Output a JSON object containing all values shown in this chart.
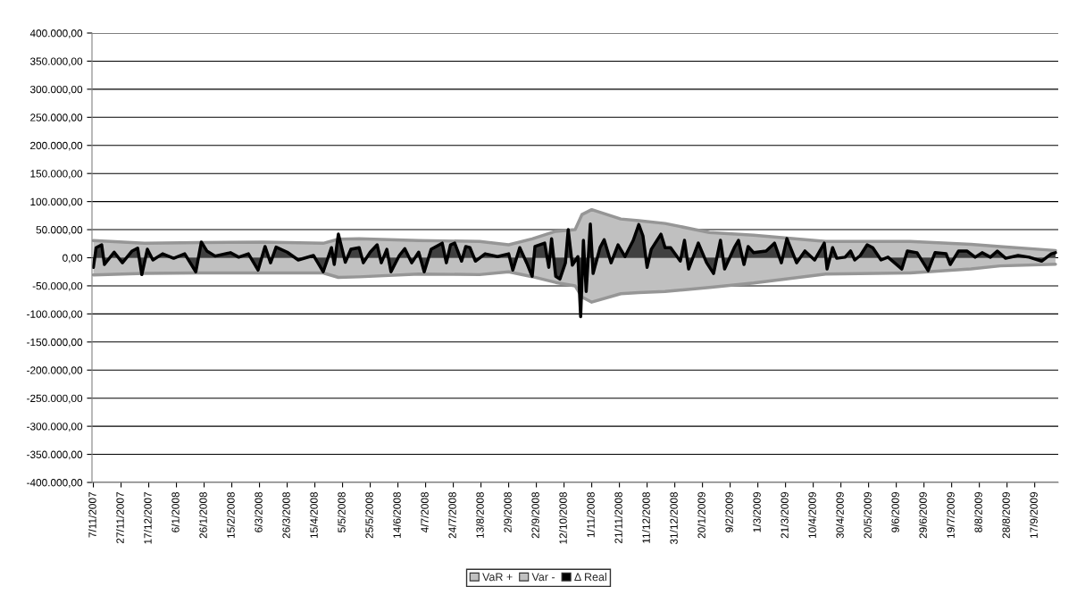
{
  "chart_data": {
    "type": "area",
    "series": [
      {
        "name": "VaR +",
        "color": "#c0c0c0",
        "x": [
          "2007-11-07",
          "2007-12-14",
          "2008-01-23",
          "2008-03-09",
          "2008-04-21",
          "2008-05-02",
          "2008-05-17",
          "2008-06-29",
          "2008-08-12",
          "2008-09-02",
          "2008-09-19",
          "2008-10-06",
          "2008-10-20",
          "2008-10-25",
          "2008-11-01",
          "2008-11-22",
          "2008-12-05",
          "2008-12-24",
          "2009-01-25",
          "2009-02-26",
          "2009-04-19",
          "2009-06-19",
          "2009-08-02",
          "2009-08-23",
          "2009-10-02"
        ],
        "values": [
          30500,
          25700,
          27000,
          28000,
          25700,
          33000,
          33700,
          30600,
          29000,
          23000,
          33700,
          47000,
          50000,
          77000,
          85700,
          69000,
          66000,
          61000,
          45000,
          40000,
          29000,
          29000,
          24000,
          20000,
          12900
        ]
      },
      {
        "name": "Var -",
        "color": "#c0c0c0",
        "x": [
          "2007-11-07",
          "2007-12-14",
          "2008-01-23",
          "2008-03-09",
          "2008-04-21",
          "2008-05-02",
          "2008-05-17",
          "2008-06-29",
          "2008-08-12",
          "2008-09-02",
          "2008-09-19",
          "2008-10-06",
          "2008-10-20",
          "2008-10-25",
          "2008-11-01",
          "2008-11-22",
          "2008-12-05",
          "2008-12-24",
          "2009-01-25",
          "2009-02-26",
          "2009-04-19",
          "2009-06-19",
          "2009-08-02",
          "2009-08-23",
          "2009-10-02"
        ],
        "values": [
          -30500,
          -28000,
          -27000,
          -27000,
          -27000,
          -35000,
          -34000,
          -29000,
          -30000,
          -25000,
          -33700,
          -44000,
          -50000,
          -70000,
          -79000,
          -64000,
          -62000,
          -60000,
          -53000,
          -45000,
          -29000,
          -27000,
          -20000,
          -14500,
          -11500
        ]
      },
      {
        "name": "Δ Real",
        "color": "#000000",
        "x": [
          "2007-11-07",
          "2007-11-09",
          "2007-11-13",
          "2007-11-15",
          "2007-11-22",
          "2007-11-28",
          "2007-12-05",
          "2007-12-09",
          "2007-12-12",
          "2007-12-16",
          "2007-12-20",
          "2007-12-27",
          "2008-01-04",
          "2008-01-12",
          "2008-01-20",
          "2008-01-24",
          "2008-01-28",
          "2008-02-03",
          "2008-02-14",
          "2008-02-20",
          "2008-02-27",
          "2008-03-05",
          "2008-03-10",
          "2008-03-14",
          "2008-03-18",
          "2008-03-26",
          "2008-04-03",
          "2008-04-14",
          "2008-04-21",
          "2008-04-27",
          "2008-04-29",
          "2008-05-02",
          "2008-05-07",
          "2008-05-11",
          "2008-05-17",
          "2008-05-20",
          "2008-05-25",
          "2008-05-30",
          "2008-06-02",
          "2008-06-06",
          "2008-06-09",
          "2008-06-15",
          "2008-06-19",
          "2008-06-24",
          "2008-06-29",
          "2008-07-03",
          "2008-07-08",
          "2008-07-16",
          "2008-07-19",
          "2008-07-22",
          "2008-07-25",
          "2008-07-30",
          "2008-08-02",
          "2008-08-05",
          "2008-08-09",
          "2008-08-16",
          "2008-08-25",
          "2008-09-02",
          "2008-09-05",
          "2008-09-10",
          "2008-09-15",
          "2008-09-19",
          "2008-09-21",
          "2008-09-28",
          "2008-10-01",
          "2008-10-03",
          "2008-10-06",
          "2008-10-09",
          "2008-10-13",
          "2008-10-15",
          "2008-10-18",
          "2008-10-22",
          "2008-10-24",
          "2008-10-26",
          "2008-10-28",
          "2008-10-31",
          "2008-11-02",
          "2008-11-07",
          "2008-11-10",
          "2008-11-15",
          "2008-11-20",
          "2008-11-25",
          "2008-12-01",
          "2008-12-05",
          "2008-12-08",
          "2008-12-11",
          "2008-12-14",
          "2008-12-21",
          "2008-12-24",
          "2008-12-28",
          "2009-01-04",
          "2009-01-07",
          "2009-01-10",
          "2009-01-17",
          "2009-01-23",
          "2009-01-28",
          "2009-02-02",
          "2009-02-05",
          "2009-02-12",
          "2009-02-15",
          "2009-02-19",
          "2009-02-22",
          "2009-02-26",
          "2009-03-07",
          "2009-03-13",
          "2009-03-18",
          "2009-03-22",
          "2009-03-29",
          "2009-04-04",
          "2009-04-11",
          "2009-04-18",
          "2009-04-20",
          "2009-04-24",
          "2009-04-27",
          "2009-05-03",
          "2009-05-07",
          "2009-05-10",
          "2009-05-14",
          "2009-05-19",
          "2009-05-23",
          "2009-05-29",
          "2009-06-03",
          "2009-06-13",
          "2009-06-17",
          "2009-06-24",
          "2009-07-02",
          "2009-07-07",
          "2009-07-15",
          "2009-07-18",
          "2009-07-24",
          "2009-07-30",
          "2009-08-05",
          "2009-08-10",
          "2009-08-16",
          "2009-08-21",
          "2009-08-27",
          "2009-09-05",
          "2009-09-13",
          "2009-09-22",
          "2009-09-29",
          "2009-10-02"
        ],
        "values": [
          -17000,
          18000,
          23000,
          -12000,
          10000,
          -9000,
          12000,
          17000,
          -30000,
          15000,
          -4000,
          7000,
          -1000,
          7000,
          -25000,
          28000,
          12000,
          3000,
          9000,
          1000,
          7000,
          -22000,
          20000,
          -9000,
          19000,
          10000,
          -4000,
          4000,
          -25000,
          18000,
          -12000,
          42000,
          -8000,
          15000,
          18000,
          -9000,
          10000,
          23000,
          -9000,
          15000,
          -25000,
          4000,
          16000,
          -9000,
          10000,
          -25000,
          15000,
          26000,
          -9000,
          23000,
          26000,
          -6000,
          20000,
          18000,
          -6000,
          7000,
          2000,
          7000,
          -22000,
          18000,
          -9000,
          -33000,
          20000,
          26000,
          -17000,
          34000,
          -33000,
          -38000,
          -9000,
          50000,
          -13000,
          2000,
          -105000,
          31000,
          -60000,
          60000,
          -28000,
          18000,
          32000,
          -9000,
          23000,
          2000,
          31000,
          59000,
          39000,
          -17000,
          15000,
          42000,
          18000,
          18000,
          -6000,
          31000,
          -20000,
          26000,
          -9000,
          -28000,
          31000,
          -20000,
          18000,
          31000,
          -12000,
          20000,
          9000,
          12000,
          26000,
          -9000,
          34000,
          -9000,
          12000,
          -4000,
          26000,
          -20000,
          18000,
          -1000,
          1000,
          12000,
          -4000,
          4000,
          23000,
          18000,
          -4000,
          1000,
          -20000,
          12000,
          9000,
          -23000,
          9000,
          7000,
          -12000,
          12000,
          12000,
          1000,
          9000,
          1000,
          12000,
          -1000,
          4000,
          1000,
          -6000,
          7000,
          9000
        ]
      }
    ],
    "xlim": [
      "2007-11-06",
      "2009-10-04"
    ],
    "xticks": [
      {
        "value": "2007-11-07",
        "label": "7/11/2007"
      },
      {
        "value": "2007-11-27",
        "label": "27/11/2007"
      },
      {
        "value": "2007-12-17",
        "label": "17/12/2007"
      },
      {
        "value": "2008-01-06",
        "label": "6/1/2008"
      },
      {
        "value": "2008-01-26",
        "label": "26/1/2008"
      },
      {
        "value": "2008-02-15",
        "label": "15/2/2008"
      },
      {
        "value": "2008-03-06",
        "label": "6/3/2008"
      },
      {
        "value": "2008-03-26",
        "label": "26/3/2008"
      },
      {
        "value": "2008-04-15",
        "label": "15/4/2008"
      },
      {
        "value": "2008-05-05",
        "label": "5/5/2008"
      },
      {
        "value": "2008-05-25",
        "label": "25/5/2008"
      },
      {
        "value": "2008-06-14",
        "label": "14/6/2008"
      },
      {
        "value": "2008-07-04",
        "label": "4/7/2008"
      },
      {
        "value": "2008-07-24",
        "label": "24/7/2008"
      },
      {
        "value": "2008-08-13",
        "label": "13/8/2008"
      },
      {
        "value": "2008-09-02",
        "label": "2/9/2008"
      },
      {
        "value": "2008-09-22",
        "label": "22/9/2008"
      },
      {
        "value": "2008-10-12",
        "label": "12/10/2008"
      },
      {
        "value": "2008-11-01",
        "label": "1/11/2008"
      },
      {
        "value": "2008-11-21",
        "label": "21/11/2008"
      },
      {
        "value": "2008-12-11",
        "label": "11/12/2008"
      },
      {
        "value": "2008-12-31",
        "label": "31/12/2008"
      },
      {
        "value": "2009-01-20",
        "label": "20/1/2009"
      },
      {
        "value": "2009-02-09",
        "label": "9/2/2009"
      },
      {
        "value": "2009-03-01",
        "label": "1/3/2009"
      },
      {
        "value": "2009-03-21",
        "label": "21/3/2009"
      },
      {
        "value": "2009-04-10",
        "label": "10/4/2009"
      },
      {
        "value": "2009-04-30",
        "label": "30/4/2009"
      },
      {
        "value": "2009-05-20",
        "label": "20/5/2009"
      },
      {
        "value": "2009-06-09",
        "label": "9/6/2009"
      },
      {
        "value": "2009-06-29",
        "label": "29/6/2009"
      },
      {
        "value": "2009-07-19",
        "label": "19/7/2009"
      },
      {
        "value": "2009-08-08",
        "label": "8/8/2009"
      },
      {
        "value": "2009-08-28",
        "label": "28/8/2009"
      },
      {
        "value": "2009-09-17",
        "label": "17/9/2009"
      }
    ],
    "ylim": [
      -400000,
      400000
    ],
    "yticks": [
      {
        "value": -400000,
        "label": "-400.000,00"
      },
      {
        "value": -350000,
        "label": "-350.000,00"
      },
      {
        "value": -300000,
        "label": "-300.000,00"
      },
      {
        "value": -250000,
        "label": "-250.000,00"
      },
      {
        "value": -200000,
        "label": "-200.000,00"
      },
      {
        "value": -150000,
        "label": "-150.000,00"
      },
      {
        "value": -100000,
        "label": "-100.000,00"
      },
      {
        "value": -50000,
        "label": "-50.000,00"
      },
      {
        "value": 0,
        "label": "0,00"
      },
      {
        "value": 50000,
        "label": "50.000,00"
      },
      {
        "value": 100000,
        "label": "100.000,00"
      },
      {
        "value": 150000,
        "label": "150.000,00"
      },
      {
        "value": 200000,
        "label": "200.000,00"
      },
      {
        "value": 250000,
        "label": "250.000,00"
      },
      {
        "value": 300000,
        "label": "300.000,00"
      },
      {
        "value": 350000,
        "label": "350.000,00"
      },
      {
        "value": 400000,
        "label": "400.000,00"
      }
    ],
    "grid": "y",
    "legend": "bottom"
  }
}
